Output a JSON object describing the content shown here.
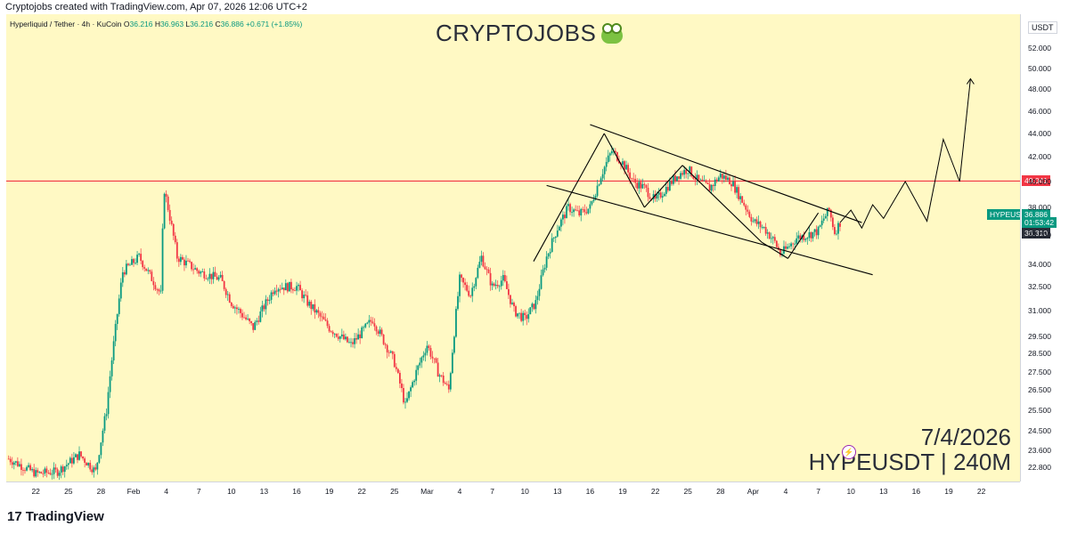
{
  "header": {
    "credit": "Cryptojobs created with TradingView.com, Apr 07, 2026 12:06 UTC+2"
  },
  "legend": {
    "symbol": "Hyperliquid / Tether · 4h · KuCoin",
    "open_label": "O",
    "open": "36.216",
    "high_label": "H",
    "high": "36.963",
    "low_label": "L",
    "low": "36.216",
    "close_label": "C",
    "close": "36.886",
    "change": "+0.671 (+1.85%)"
  },
  "brand": {
    "title": "CRYPTOJOBS",
    "emoji_icon": "frog-face-icon"
  },
  "stamp": {
    "date": "7/4/2026",
    "symbol_tf": "HYPEUSDT | 240M"
  },
  "footer": {
    "logo_text": "TradingView",
    "logo_mark": "17"
  },
  "price_axis": {
    "currency": "USDT",
    "resistance_label": "40.041",
    "last_price_symbol": "HYPEUSDT",
    "last_price": "36.886",
    "countdown": "01:53:42",
    "prev_label": "36.310"
  },
  "colors": {
    "background": "#FFF9C4",
    "up": "#089981",
    "down": "#F23645",
    "resistance": "#F23645",
    "trend": "#000000"
  },
  "chart_data": {
    "type": "candlestick",
    "timeframe": "4h",
    "yticks": [
      22.8,
      23.6,
      24.5,
      25.5,
      26.5,
      27.5,
      28.5,
      29.5,
      31.0,
      32.5,
      34.0,
      36.0,
      38.0,
      40.0,
      42.0,
      44.0,
      46.0,
      48.0,
      50.0,
      52.0
    ],
    "ytick_labels": [
      "22.800",
      "23.600",
      "24.500",
      "25.500",
      "26.500",
      "27.500",
      "28.500",
      "29.500",
      "31.000",
      "32.500",
      "34.000",
      "36.000",
      "38.000",
      "40.000",
      "42.000",
      "44.000",
      "46.000",
      "48.000",
      "50.000",
      "52.000"
    ],
    "xticks": [
      "22",
      "25",
      "28",
      "Feb",
      "4",
      "7",
      "10",
      "13",
      "16",
      "19",
      "22",
      "25",
      "Mar",
      "4",
      "7",
      "10",
      "13",
      "16",
      "19",
      "22",
      "25",
      "28",
      "Apr",
      "4",
      "7",
      "10",
      "13",
      "16",
      "19",
      "22"
    ],
    "xtick_days": [
      -9,
      -6,
      -3,
      0,
      3,
      6,
      9,
      12,
      15,
      18,
      21,
      24,
      27,
      30,
      33,
      36,
      39,
      42,
      45,
      48,
      51,
      54,
      57,
      60,
      63,
      66,
      69,
      72,
      75,
      78
    ],
    "path_keypoints": [
      [
        -11.5,
        23.2
      ],
      [
        -9,
        22.5
      ],
      [
        -7,
        22.6
      ],
      [
        -5,
        23.4
      ],
      [
        -3.5,
        22.6
      ],
      [
        -2.5,
        25.5
      ],
      [
        -1,
        33.5
      ],
      [
        0.5,
        34.5
      ],
      [
        2.5,
        32.0
      ],
      [
        2.8,
        39.5
      ],
      [
        4,
        34.5
      ],
      [
        6,
        33.5
      ],
      [
        8,
        33.0
      ],
      [
        9,
        31.5
      ],
      [
        11,
        30.0
      ],
      [
        13,
        32.5
      ],
      [
        15,
        32.5
      ],
      [
        16,
        31.5
      ],
      [
        18,
        30.0
      ],
      [
        20,
        29.0
      ],
      [
        22,
        30.5
      ],
      [
        24,
        28.0
      ],
      [
        25,
        25.7
      ],
      [
        26,
        27.5
      ],
      [
        27,
        29.0
      ],
      [
        28,
        27.5
      ],
      [
        29,
        26.5
      ],
      [
        30,
        33.0
      ],
      [
        31,
        32.0
      ],
      [
        32,
        34.5
      ],
      [
        33,
        32.5
      ],
      [
        34,
        33.0
      ],
      [
        35,
        31.0
      ],
      [
        36,
        30.5
      ],
      [
        37,
        31.5
      ],
      [
        38,
        34.5
      ],
      [
        39,
        36.5
      ],
      [
        40,
        38.0
      ],
      [
        41,
        37.5
      ],
      [
        42,
        38.0
      ],
      [
        43,
        40.5
      ],
      [
        44,
        42.5
      ],
      [
        45,
        41.5
      ],
      [
        46,
        40.0
      ],
      [
        47,
        39.5
      ],
      [
        48,
        38.5
      ],
      [
        49,
        39.5
      ],
      [
        50,
        40.5
      ],
      [
        51,
        41.0
      ],
      [
        52,
        40.0
      ],
      [
        53,
        39.5
      ],
      [
        54,
        40.5
      ],
      [
        55,
        40.0
      ],
      [
        56,
        38.5
      ],
      [
        57,
        37.0
      ],
      [
        58,
        36.5
      ],
      [
        59,
        35.5
      ],
      [
        59.5,
        34.7
      ],
      [
        60,
        35.0
      ],
      [
        61,
        35.8
      ],
      [
        62,
        36.0
      ],
      [
        63,
        36.3
      ],
      [
        63.5,
        37.2
      ],
      [
        64,
        37.8
      ],
      [
        64.5,
        36.2
      ],
      [
        65,
        36.9
      ]
    ],
    "projection_path": [
      [
        65,
        36.9
      ],
      [
        66,
        37.8
      ],
      [
        67,
        36.5
      ],
      [
        68,
        38.2
      ],
      [
        69,
        37.2
      ],
      [
        71,
        40.0
      ],
      [
        73,
        37.0
      ],
      [
        74.5,
        43.5
      ],
      [
        76,
        40.0
      ],
      [
        77,
        49.0
      ]
    ],
    "horizontal_lines": [
      {
        "y": 40.041,
        "color": "#F23645"
      }
    ],
    "trend_lines": [
      {
        "from": [
          42,
          44.8
        ],
        "to": [
          67,
          36.9
        ]
      },
      {
        "from": [
          38,
          39.7
        ],
        "to": [
          68,
          33.3
        ]
      },
      {
        "from": [
          36.8,
          34.2
        ],
        "to": [
          43.3,
          44.0
        ]
      },
      {
        "from": [
          43.3,
          44.0
        ],
        "to": [
          47,
          38.0
        ]
      },
      {
        "from": [
          47,
          38.0
        ],
        "to": [
          50.5,
          41.3
        ]
      },
      {
        "from": [
          50.5,
          41.3
        ],
        "to": [
          57.8,
          35.5
        ]
      },
      {
        "from": [
          57.8,
          35.5
        ],
        "to": [
          60.2,
          34.4
        ]
      },
      {
        "from": [
          60.2,
          34.4
        ],
        "to": [
          63,
          37.6
        ]
      }
    ]
  }
}
